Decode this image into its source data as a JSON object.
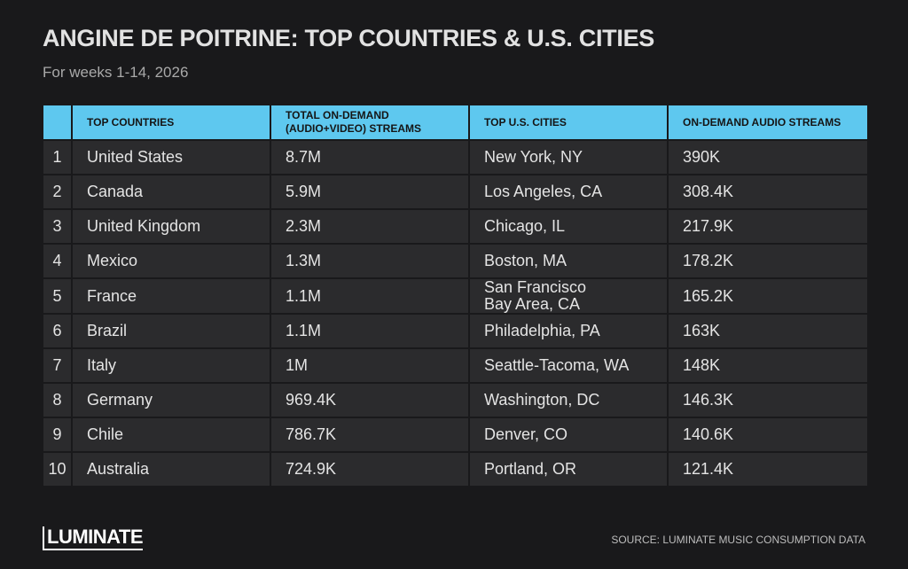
{
  "header": {
    "title": "ANGINE DE POITRINE: TOP COUNTRIES & U.S. CITIES",
    "subtitle": "For weeks 1-14, 2026"
  },
  "table": {
    "columns": [
      "TOP COUNTRIES",
      "TOTAL ON-DEMAND\n(AUDIO+VIDEO) STREAMS",
      "TOP U.S. CITIES",
      "ON-DEMAND AUDIO STREAMS"
    ],
    "rows": [
      [
        1,
        "United States",
        "8.7M",
        "New York, NY",
        "390K"
      ],
      [
        2,
        "Canada",
        "5.9M",
        "Los Angeles, CA",
        "308.4K"
      ],
      [
        3,
        "United Kingdom",
        "2.3M",
        "Chicago, IL",
        "217.9K"
      ],
      [
        4,
        "Mexico",
        "1.3M",
        "Boston, MA",
        "178.2K"
      ],
      [
        5,
        "France",
        "1.1M",
        "San Francisco\nBay Area, CA",
        "165.2K"
      ],
      [
        6,
        "Brazil",
        "1.1M",
        "Philadelphia, PA",
        "163K"
      ],
      [
        7,
        "Italy",
        "1M",
        "Seattle-Tacoma, WA",
        "148K"
      ],
      [
        8,
        "Germany",
        "969.4K",
        "Washington, DC",
        "146.3K"
      ],
      [
        9,
        "Chile",
        "786.7K",
        "Denver, CO",
        "140.6K"
      ],
      [
        10,
        "Australia",
        "724.9K",
        "Portland, OR",
        "121.4K"
      ]
    ]
  },
  "footer": {
    "logo": "LUMINATE",
    "source": "SOURCE: LUMINATE MUSIC CONSUMPTION DATA"
  }
}
